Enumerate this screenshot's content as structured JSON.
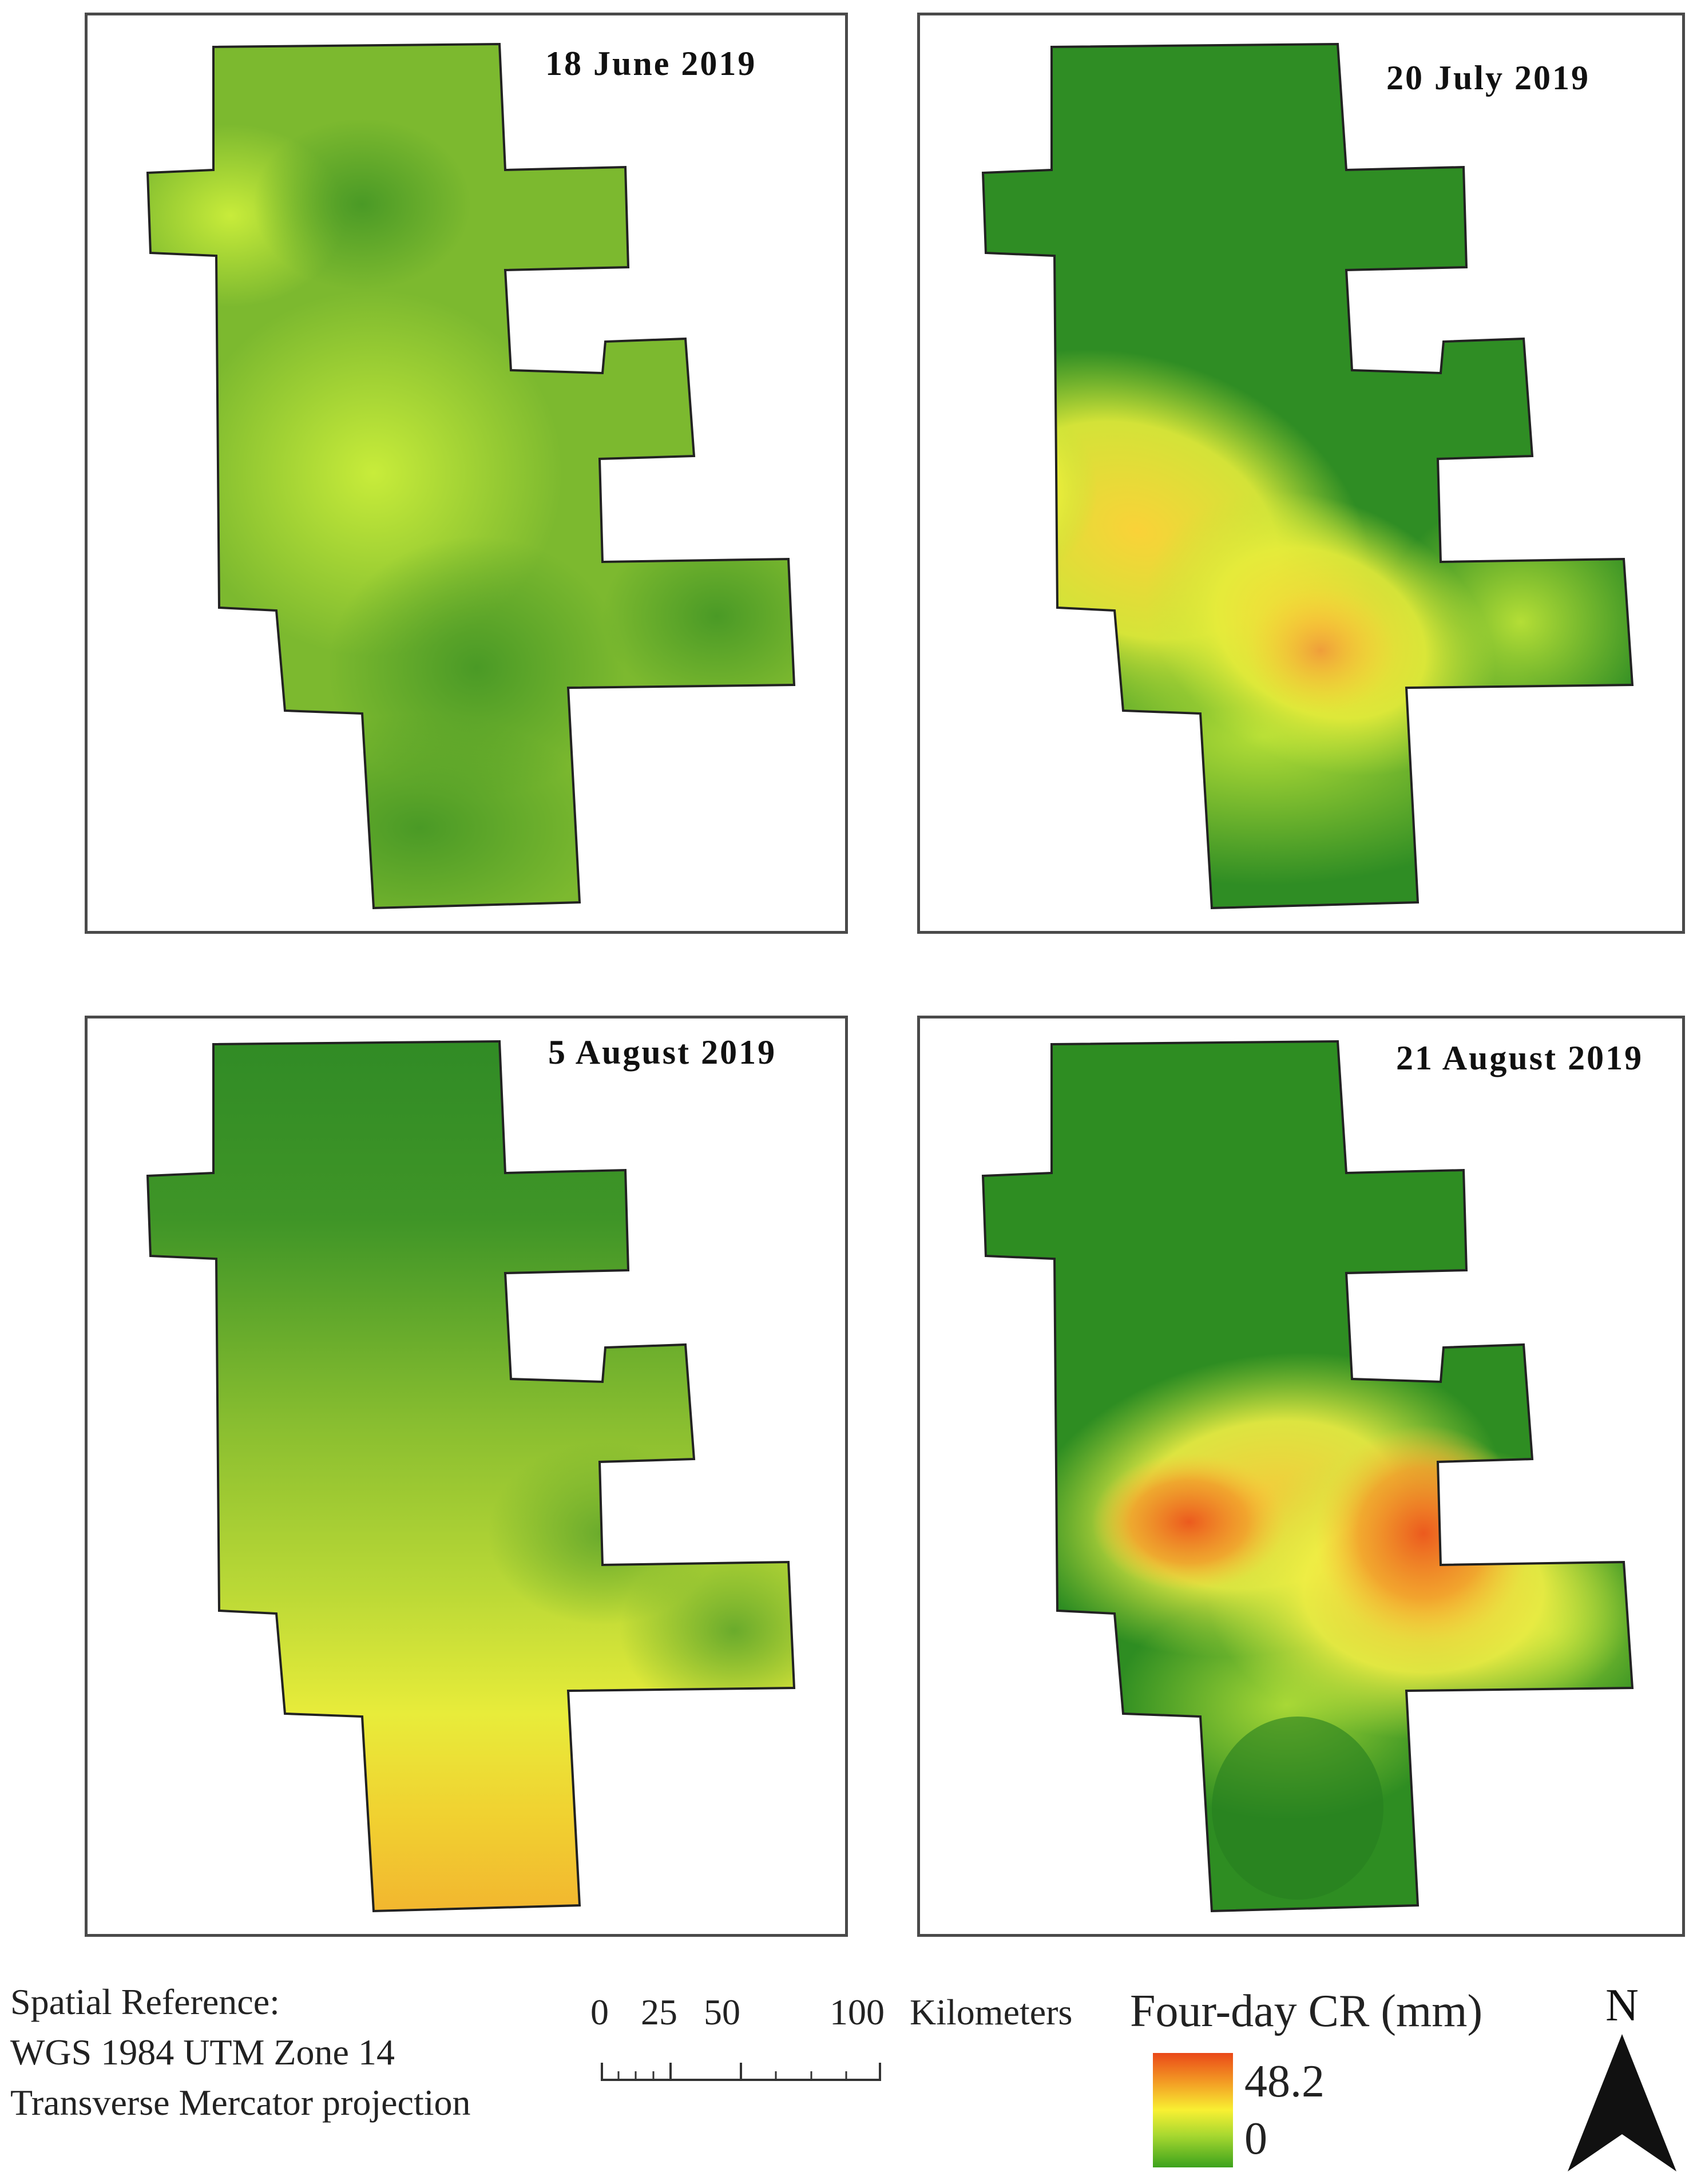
{
  "panels": [
    {
      "id": "panel-1",
      "date": "18 June 2019",
      "colors": [
        "#77b52f",
        "#5ea32b",
        "#a7d334"
      ]
    },
    {
      "id": "panel-2",
      "date": "20 July 2019",
      "colors": [
        "#3e9a28",
        "#2b8a22",
        "#f7cf34",
        "#efa23a"
      ]
    },
    {
      "id": "panel-3",
      "date": "5 August 2019",
      "colors": [
        "#2f8a25",
        "#8bbf30",
        "#e8e23a",
        "#f2b02f"
      ]
    },
    {
      "id": "panel-4",
      "date": "21 August 2019",
      "colors": [
        "#2e8d22",
        "#f7e04a",
        "#f29a2a",
        "#e8461c"
      ]
    }
  ],
  "spatial_reference": {
    "line1": "Spatial Reference:",
    "line2": "WGS 1984 UTM Zone 14",
    "line3": "Transverse Mercator projection"
  },
  "scale": {
    "ticks": [
      "0",
      "25",
      "50",
      "100"
    ],
    "unit": "Kilometers"
  },
  "legend": {
    "title": "Four-day CR (mm)",
    "max": "48.2",
    "min": "0",
    "ramp_colors": [
      "#ea4818",
      "#f39a24",
      "#f8f032",
      "#a8d830",
      "#3ca21c"
    ]
  },
  "north": {
    "label": "N",
    "icon": "north-arrow-icon"
  }
}
